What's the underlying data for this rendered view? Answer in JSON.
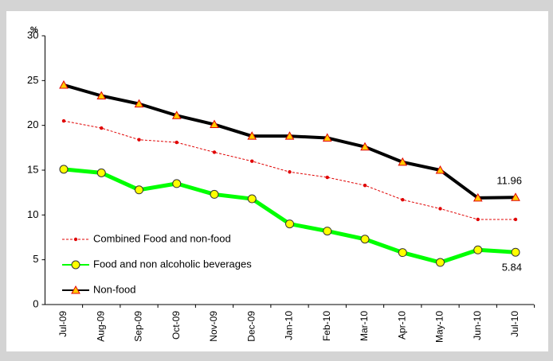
{
  "chart_data": {
    "type": "line",
    "y_label": "%",
    "categories": [
      "Jul-09",
      "Aug-09",
      "Sep-09",
      "Oct-09",
      "Nov-09",
      "Dec-09",
      "Jan-10",
      "Feb-10",
      "Mar-10",
      "Apr-10",
      "May-10",
      "Jun-10",
      "Jul-10"
    ],
    "series": [
      {
        "name": "Combined  Food and non-food",
        "color": "#e00000",
        "marker": "dot",
        "values": [
          20.5,
          19.7,
          18.4,
          18.1,
          17.0,
          16.0,
          14.8,
          14.2,
          13.3,
          11.7,
          10.7,
          9.5,
          9.5
        ]
      },
      {
        "name": "Food and non alcoholic beverages",
        "color": "#00ff00",
        "marker": "circle",
        "values": [
          15.1,
          14.7,
          12.8,
          13.5,
          12.3,
          11.8,
          9.0,
          8.2,
          7.3,
          5.8,
          4.7,
          6.1,
          5.84
        ],
        "value_labels": [
          null,
          null,
          null,
          null,
          null,
          null,
          null,
          null,
          null,
          null,
          null,
          null,
          "5.84"
        ]
      },
      {
        "name": "Non-food",
        "color": "#000000",
        "marker": "triangle",
        "values": [
          24.5,
          23.3,
          22.4,
          21.1,
          20.1,
          18.8,
          18.8,
          18.6,
          17.6,
          15.9,
          15.0,
          11.9,
          11.96
        ],
        "value_labels": [
          null,
          null,
          null,
          null,
          null,
          null,
          null,
          null,
          null,
          null,
          null,
          null,
          "11.96"
        ]
      }
    ],
    "ylim": [
      0,
      30
    ],
    "yticks": [
      0,
      5,
      10,
      15,
      20,
      25,
      30
    ],
    "grid": false,
    "legend": "lower left"
  }
}
